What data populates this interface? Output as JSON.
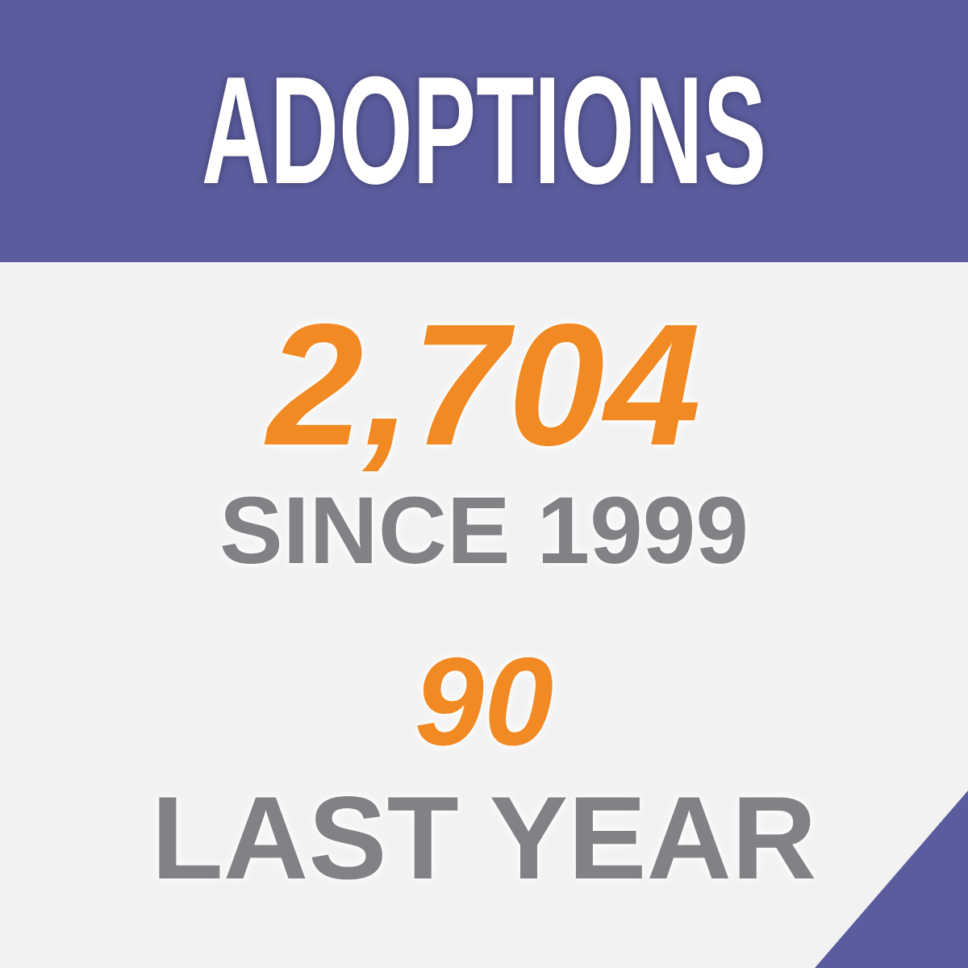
{
  "header": {
    "title": "ADOPTIONS"
  },
  "stats": [
    {
      "value": "2,704",
      "label": "SINCE 1999"
    },
    {
      "value": "90",
      "label": "LAST YEAR"
    }
  ],
  "colors": {
    "brand_purple": "#5b5c9e",
    "accent_orange": "#f28a24",
    "text_gray": "#808285",
    "background": "#f2f2f2"
  }
}
